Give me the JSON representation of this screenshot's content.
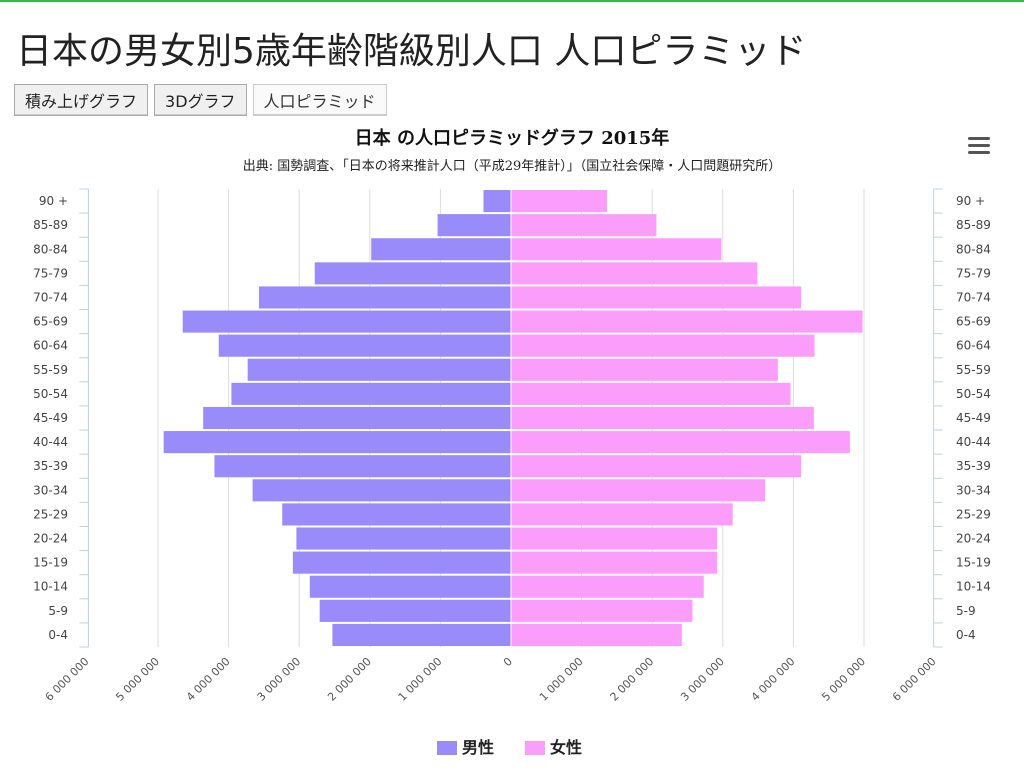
{
  "page": {
    "title": "日本の男女別5歳年齢階級別人口 人口ピラミッド",
    "buttons": [
      "積み上げグラフ",
      "3Dグラフ",
      "人口ピラミッド"
    ]
  },
  "menu_icon": "hamburger-menu-icon",
  "colors": {
    "male": "#9a8bfb",
    "female": "#fb9dfb",
    "grid": "#dddddd",
    "axis": "#c0d0e0"
  },
  "chart_data": {
    "type": "bar",
    "subtype": "population-pyramid",
    "title": "日本 の人口ピラミッドグラフ 2015年",
    "subtitle": "出典: 国勢調査、「日本の将来推計人口（平成29年推計）」（国立社会保障・人口問題研究所）",
    "categories": [
      "90 +",
      "85-89",
      "80-84",
      "75-79",
      "70-74",
      "65-69",
      "60-64",
      "55-59",
      "50-54",
      "45-49",
      "40-44",
      "35-39",
      "30-34",
      "25-29",
      "20-24",
      "15-19",
      "10-14",
      "5-9",
      "0-4"
    ],
    "series": [
      {
        "name": "男性",
        "side": "left",
        "values": [
          390000,
          1040000,
          1980000,
          2780000,
          3570000,
          4650000,
          4140000,
          3730000,
          3960000,
          4360000,
          4920000,
          4200000,
          3660000,
          3240000,
          3040000,
          3090000,
          2850000,
          2710000,
          2530000
        ]
      },
      {
        "name": "女性",
        "side": "right",
        "values": [
          1360000,
          2060000,
          2980000,
          3490000,
          4110000,
          4980000,
          4300000,
          3780000,
          3960000,
          4290000,
          4800000,
          4110000,
          3600000,
          3140000,
          2920000,
          2920000,
          2730000,
          2570000,
          2420000
        ]
      }
    ],
    "xlim": [
      -6000000,
      6000000
    ],
    "xticks": [
      -6000000,
      -5000000,
      -4000000,
      -3000000,
      -2000000,
      -1000000,
      0,
      1000000,
      2000000,
      3000000,
      4000000,
      5000000,
      6000000
    ],
    "xtick_labels": [
      "6 000 000",
      "5 000 000",
      "4 000 000",
      "3 000 000",
      "2 000 000",
      "1 000 000",
      "0",
      "1 000 000",
      "2 000 000",
      "3 000 000",
      "4 000 000",
      "5 000 000",
      "6 000 000"
    ],
    "grid": true,
    "legend": "bottom-center"
  }
}
